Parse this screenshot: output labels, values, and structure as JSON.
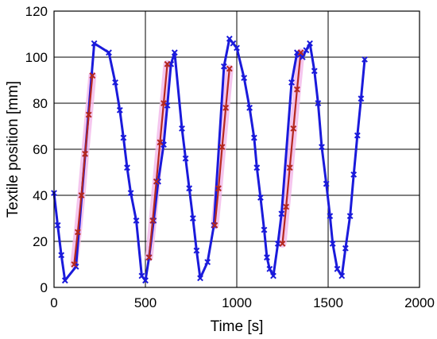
{
  "chart_data": {
    "type": "line",
    "title": "",
    "xlabel": "Time [s]",
    "ylabel": "Textile position [mm]",
    "xlim": [
      0,
      2000
    ],
    "ylim": [
      0,
      120
    ],
    "xticks": [
      0,
      500,
      1000,
      1500,
      2000
    ],
    "yticks": [
      0,
      20,
      40,
      60,
      80,
      100,
      120
    ],
    "grid": true,
    "legend": "none",
    "colors": {
      "main": "#1a1adb",
      "highlight": "#b5281f",
      "shade": "#f3b8ea"
    },
    "series": [
      {
        "style": "main",
        "x": [
          0,
          20,
          40,
          60,
          120,
          220,
          300,
          335,
          360,
          380,
          400,
          420,
          450,
          480,
          500,
          520,
          545,
          570,
          600,
          620,
          640,
          660,
          700,
          720,
          740,
          760,
          780,
          800,
          840,
          875,
          930,
          960,
          980,
          1000,
          1040,
          1070,
          1095,
          1110,
          1130,
          1150,
          1165,
          1180,
          1200,
          1225,
          1245,
          1300,
          1330,
          1345,
          1360,
          1380,
          1400,
          1425,
          1445,
          1465,
          1490,
          1510,
          1525,
          1550,
          1575,
          1595,
          1620,
          1640,
          1660,
          1680,
          1700
        ],
        "y": [
          41,
          27,
          14,
          3,
          9,
          106,
          102,
          89,
          77,
          65,
          52,
          41,
          29,
          5,
          3,
          13,
          29,
          46,
          62,
          79,
          97,
          102,
          69,
          56,
          43,
          30,
          16,
          4,
          11,
          27,
          96,
          108,
          106,
          104,
          91,
          78,
          65,
          52,
          39,
          25,
          13,
          8,
          5,
          19,
          32,
          89,
          102,
          101,
          100,
          103,
          106,
          94,
          80,
          61,
          45,
          31,
          19,
          8,
          5,
          17,
          31,
          49,
          66,
          82,
          99
        ]
      },
      {
        "style": "highlight",
        "x": [
          110,
          130,
          150,
          170,
          190,
          210
        ],
        "y": [
          10,
          24,
          40,
          58,
          75,
          92
        ]
      },
      {
        "style": "highlight",
        "x": [
          520,
          540,
          560,
          580,
          600,
          620
        ],
        "y": [
          13,
          29,
          46,
          63,
          80,
          97
        ]
      },
      {
        "style": "highlight",
        "x": [
          880,
          900,
          920,
          940,
          960
        ],
        "y": [
          27,
          43,
          61,
          78,
          95
        ]
      },
      {
        "style": "highlight",
        "x": [
          1250,
          1270,
          1290,
          1310,
          1330,
          1350
        ],
        "y": [
          19,
          35,
          52,
          69,
          86,
          102
        ]
      }
    ]
  }
}
